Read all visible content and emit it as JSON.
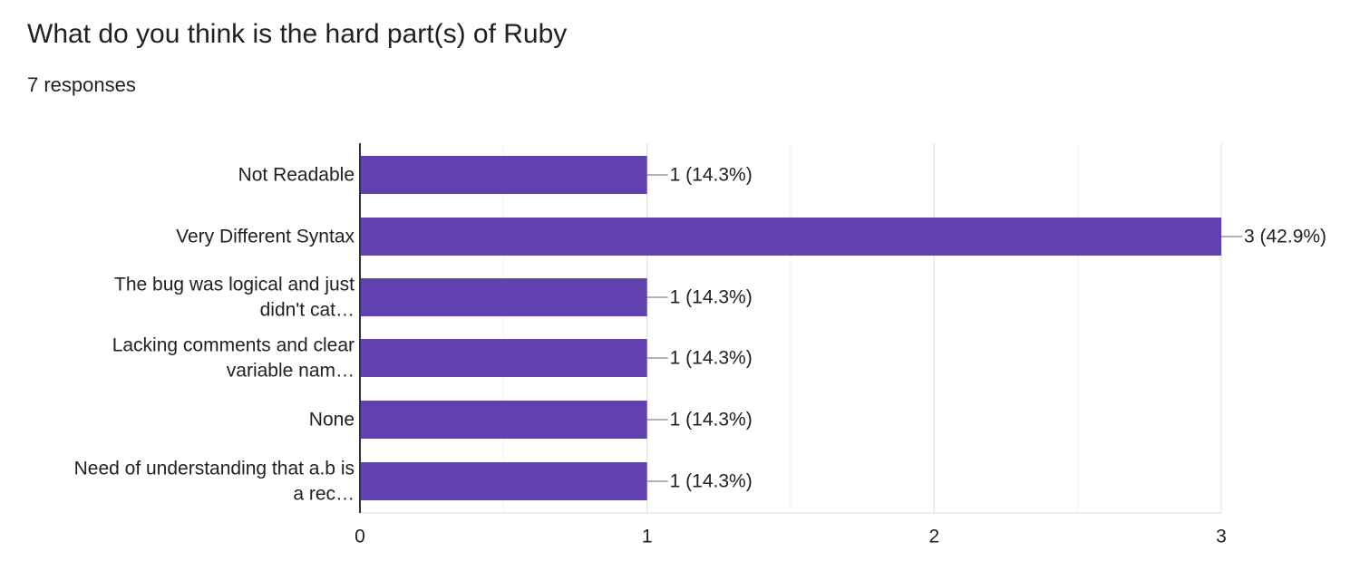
{
  "question": {
    "title": "What do you think is the hard part(s) of Ruby",
    "responses_label": "7 responses"
  },
  "colors": {
    "bar": "#6140b0",
    "grid": "#e8e8e8",
    "axis": "#333333",
    "text": "#202124"
  },
  "chart_data": {
    "type": "bar",
    "orientation": "horizontal",
    "title": "",
    "xlabel": "",
    "ylabel": "",
    "categories": [
      [
        "Not Readable"
      ],
      [
        "Very Different Syntax"
      ],
      [
        "The bug was logical and just",
        "didn't cat…"
      ],
      [
        "Lacking comments and clear",
        "variable nam…"
      ],
      [
        "None"
      ],
      [
        "Need of understanding that a.b is",
        "a rec…"
      ]
    ],
    "values": [
      1,
      3,
      1,
      1,
      1,
      1
    ],
    "data_labels": [
      "1 (14.3%)",
      "3 (42.9%)",
      "1 (14.3%)",
      "1 (14.3%)",
      "1 (14.3%)",
      "1 (14.3%)"
    ],
    "xlim": [
      0,
      3
    ],
    "x_ticks": [
      0,
      1,
      2,
      3
    ],
    "x_tick_labels": [
      "0",
      "1",
      "2",
      "3"
    ],
    "minor_gridlines": true,
    "legend": "none"
  }
}
